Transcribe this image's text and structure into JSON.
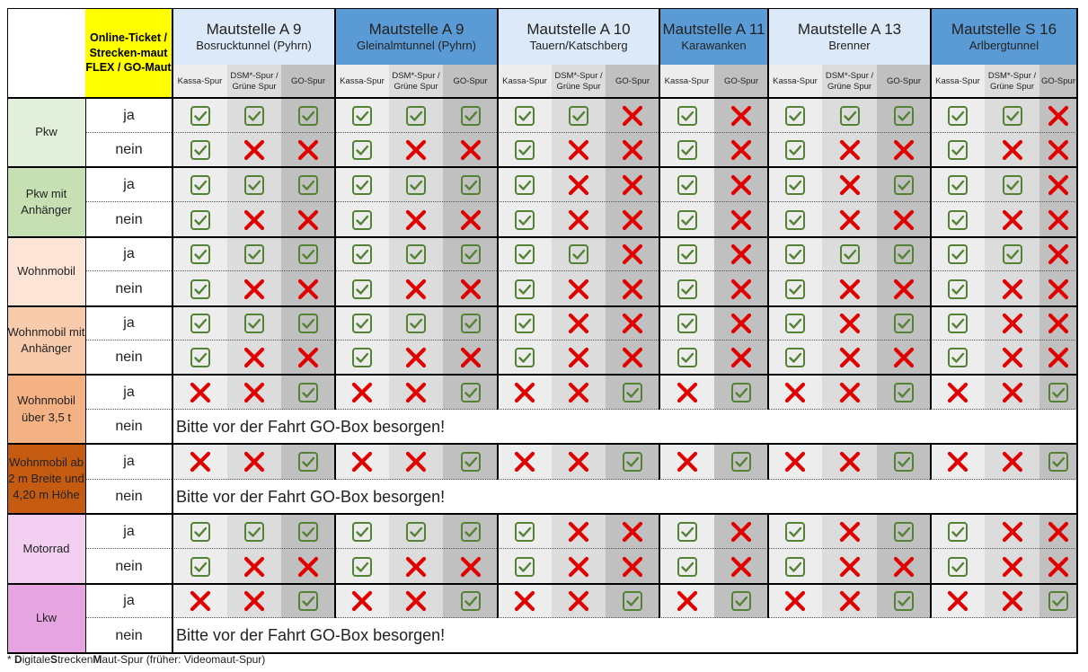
{
  "online_ticket_label": "Online-Ticket / Strecken-maut FLEX / GO-Maut",
  "groups": [
    {
      "title": "Mautstelle A 9",
      "subtitle": "Bosrucktunnel (Pyhrn)",
      "lanes": [
        "Kassa-Spur",
        "DSM*-Spur / Grüne Spur",
        "GO-Spur"
      ],
      "color": "#dce9f8"
    },
    {
      "title": "Mautstelle A 9",
      "subtitle": "Gleinalmtunnel (Pyhrn)",
      "lanes": [
        "Kassa-Spur",
        "DSM*-Spur / Grüne Spur",
        "GO-Spur"
      ],
      "color": "#5b9bd5"
    },
    {
      "title": "Mautstelle A 10",
      "subtitle": "Tauern/Katschberg",
      "lanes": [
        "Kassa-Spur",
        "DSM*-Spur / Grüne Spur",
        "GO-Spur"
      ],
      "color": "#dce9f8"
    },
    {
      "title": "Mautstelle A 11",
      "subtitle": "Karawanken",
      "lanes": [
        "Kassa-Spur",
        "GO-Spur"
      ],
      "color": "#5b9bd5"
    },
    {
      "title": "Mautstelle A 13",
      "subtitle": "Brenner",
      "lanes": [
        "Kassa-Spur",
        "DSM*-Spur / Grüne Spur",
        "GO-Spur"
      ],
      "color": "#dce9f8"
    },
    {
      "title": "Mautstelle S 16",
      "subtitle": "Arlbergtunnel",
      "lanes": [
        "Kassa-Spur",
        "DSM*-Spur / Grüne Spur",
        "GO-Spur"
      ],
      "color": "#5b9bd5"
    }
  ],
  "categories": [
    {
      "name": "Pkw",
      "color": "#e2efda",
      "rows": [
        {
          "label": "ja",
          "values": [
            1,
            1,
            1,
            1,
            1,
            1,
            1,
            1,
            0,
            1,
            0,
            1,
            1,
            1,
            1,
            1,
            0
          ]
        },
        {
          "label": "nein",
          "values": [
            1,
            0,
            0,
            1,
            0,
            0,
            1,
            0,
            0,
            1,
            0,
            1,
            0,
            0,
            1,
            0,
            0
          ]
        }
      ]
    },
    {
      "name": "Pkw mit Anhänger",
      "color": "#c6e0b4",
      "rows": [
        {
          "label": "ja",
          "values": [
            1,
            1,
            1,
            1,
            1,
            1,
            1,
            0,
            0,
            1,
            0,
            1,
            0,
            1,
            1,
            1,
            0
          ]
        },
        {
          "label": "nein",
          "values": [
            1,
            0,
            0,
            1,
            0,
            0,
            1,
            0,
            0,
            1,
            0,
            1,
            0,
            0,
            1,
            0,
            0
          ]
        }
      ]
    },
    {
      "name": "Wohnmobil",
      "color": "#fce4d6",
      "rows": [
        {
          "label": "ja",
          "values": [
            1,
            1,
            1,
            1,
            1,
            1,
            1,
            1,
            0,
            1,
            0,
            1,
            1,
            1,
            1,
            1,
            0
          ]
        },
        {
          "label": "nein",
          "values": [
            1,
            0,
            0,
            1,
            0,
            0,
            1,
            0,
            0,
            1,
            0,
            1,
            0,
            0,
            1,
            0,
            0
          ]
        }
      ]
    },
    {
      "name": "Wohnmobil mit Anhänger",
      "color": "#f8cbad",
      "rows": [
        {
          "label": "ja",
          "values": [
            1,
            1,
            1,
            1,
            1,
            1,
            1,
            0,
            0,
            1,
            0,
            1,
            0,
            1,
            1,
            0,
            0
          ]
        },
        {
          "label": "nein",
          "values": [
            1,
            0,
            0,
            1,
            0,
            0,
            1,
            0,
            0,
            1,
            0,
            1,
            0,
            0,
            1,
            0,
            0
          ]
        }
      ]
    },
    {
      "name": "Wohnmobil über 3,5 t",
      "color": "#f4b183",
      "rows": [
        {
          "label": "ja",
          "values": [
            0,
            0,
            1,
            0,
            0,
            1,
            0,
            0,
            1,
            0,
            1,
            0,
            0,
            1,
            0,
            0,
            1
          ]
        },
        {
          "label": "nein",
          "message": "Bitte vor der Fahrt GO-Box besorgen!"
        }
      ]
    },
    {
      "name": "Wohnmobil ab 2 m Breite und 4,20 m Höhe",
      "color": "#c55a11",
      "rows": [
        {
          "label": "ja",
          "values": [
            0,
            0,
            1,
            0,
            0,
            1,
            0,
            0,
            1,
            0,
            1,
            0,
            0,
            1,
            0,
            0,
            1
          ]
        },
        {
          "label": "nein",
          "message": "Bitte vor der Fahrt GO-Box besorgen!"
        }
      ]
    },
    {
      "name": "Motorrad",
      "color": "#f2cef0",
      "rows": [
        {
          "label": "ja",
          "values": [
            1,
            1,
            1,
            1,
            1,
            1,
            1,
            0,
            0,
            1,
            0,
            1,
            0,
            1,
            1,
            0,
            0
          ]
        },
        {
          "label": "nein",
          "values": [
            1,
            0,
            0,
            1,
            0,
            0,
            1,
            0,
            0,
            1,
            0,
            1,
            0,
            0,
            1,
            0,
            0
          ]
        }
      ]
    },
    {
      "name": "Lkw",
      "color": "#e6a5e0",
      "rows": [
        {
          "label": "ja",
          "values": [
            0,
            0,
            1,
            0,
            0,
            1,
            0,
            0,
            1,
            0,
            1,
            0,
            0,
            1,
            0,
            0,
            1
          ]
        },
        {
          "label": "nein",
          "message": "Bitte vor der Fahrt GO-Box besorgen!"
        }
      ]
    }
  ],
  "footnote": {
    "marker": "* ",
    "parts": [
      {
        "text": "D",
        "bold": true
      },
      {
        "text": "igitale",
        "bold": false
      },
      {
        "text": "S",
        "bold": true
      },
      {
        "text": "trecken",
        "bold": false
      },
      {
        "text": "M",
        "bold": true
      },
      {
        "text": "aut-Spur (früher: Videomaut-Spur)",
        "bold": false
      }
    ]
  },
  "colors": {
    "check": "#548235",
    "cross": "#e00000",
    "cell_light": "#ededed",
    "cell_mid": "#dcdcdc",
    "cell_go": "#c0c0c0",
    "border": "#000000"
  },
  "icons": {
    "yes": "check-box-icon",
    "no": "red-cross-icon"
  }
}
